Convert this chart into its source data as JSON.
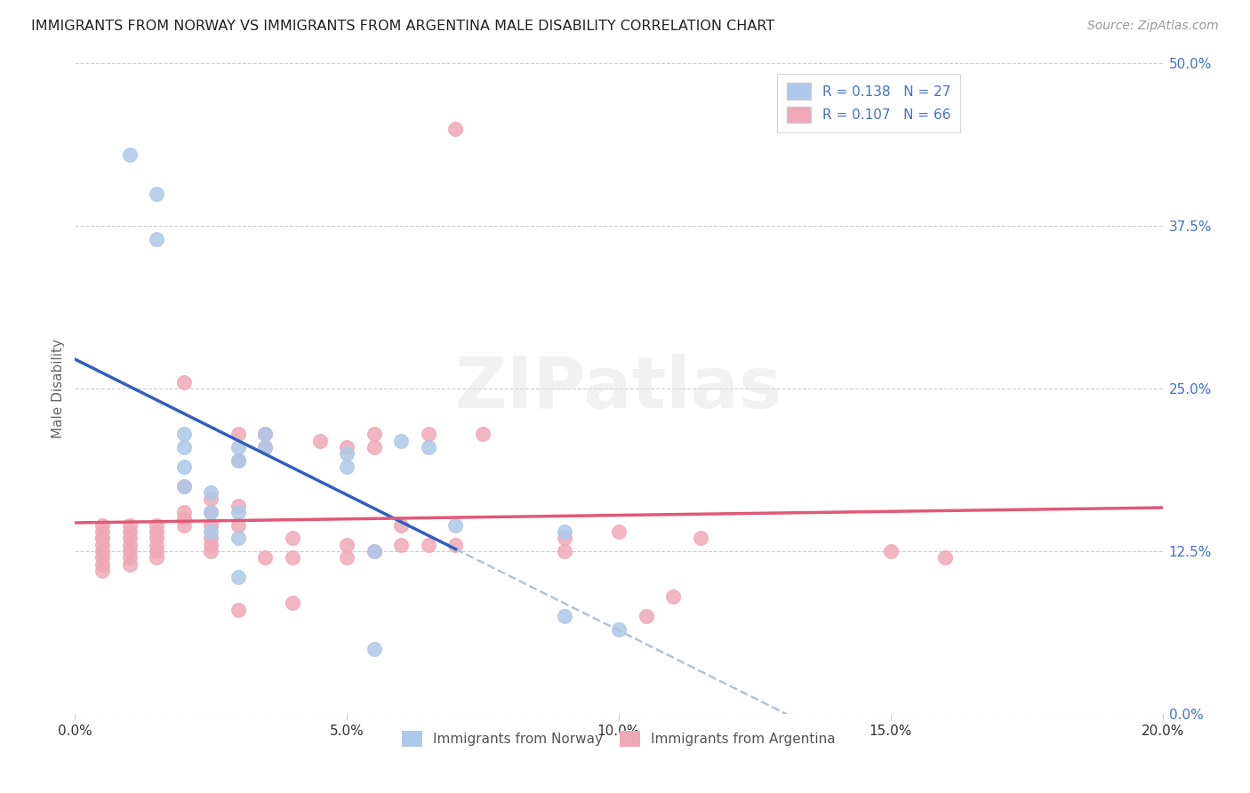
{
  "title": "IMMIGRANTS FROM NORWAY VS IMMIGRANTS FROM ARGENTINA MALE DISABILITY CORRELATION CHART",
  "source": "Source: ZipAtlas.com",
  "xlim": [
    0.0,
    0.2
  ],
  "ylim": [
    0.0,
    0.5
  ],
  "ylabel": "Male Disability",
  "legend_label1": "Immigrants from Norway",
  "legend_label2": "Immigrants from Argentina",
  "R1": 0.138,
  "N1": 27,
  "R2": 0.107,
  "N2": 66,
  "color_norway": "#adc8e8",
  "color_argentina": "#f0a8b8",
  "color_norway_line": "#3060c0",
  "color_argentina_line": "#e05878",
  "color_trendline_dash": "#b0c4d8",
  "norway_x": [
    0.01,
    0.015,
    0.015,
    0.02,
    0.02,
    0.02,
    0.02,
    0.025,
    0.025,
    0.025,
    0.03,
    0.03,
    0.03,
    0.03,
    0.03,
    0.035,
    0.035,
    0.05,
    0.05,
    0.055,
    0.055,
    0.06,
    0.065,
    0.07,
    0.09,
    0.09,
    0.1
  ],
  "norway_y": [
    0.43,
    0.4,
    0.365,
    0.215,
    0.205,
    0.19,
    0.175,
    0.17,
    0.155,
    0.14,
    0.205,
    0.195,
    0.155,
    0.135,
    0.105,
    0.215,
    0.205,
    0.19,
    0.2,
    0.125,
    0.05,
    0.21,
    0.205,
    0.145,
    0.075,
    0.14,
    0.065
  ],
  "argentina_x": [
    0.005,
    0.005,
    0.005,
    0.005,
    0.005,
    0.005,
    0.005,
    0.005,
    0.005,
    0.01,
    0.01,
    0.01,
    0.01,
    0.01,
    0.01,
    0.01,
    0.015,
    0.015,
    0.015,
    0.015,
    0.015,
    0.015,
    0.02,
    0.02,
    0.02,
    0.02,
    0.02,
    0.025,
    0.025,
    0.025,
    0.025,
    0.025,
    0.025,
    0.03,
    0.03,
    0.03,
    0.03,
    0.03,
    0.035,
    0.035,
    0.035,
    0.04,
    0.04,
    0.04,
    0.045,
    0.05,
    0.05,
    0.05,
    0.055,
    0.055,
    0.055,
    0.06,
    0.06,
    0.065,
    0.065,
    0.07,
    0.07,
    0.075,
    0.09,
    0.09,
    0.1,
    0.105,
    0.11,
    0.115,
    0.15,
    0.16
  ],
  "argentina_y": [
    0.145,
    0.14,
    0.135,
    0.135,
    0.13,
    0.125,
    0.12,
    0.115,
    0.11,
    0.145,
    0.14,
    0.135,
    0.13,
    0.125,
    0.12,
    0.115,
    0.145,
    0.14,
    0.135,
    0.13,
    0.125,
    0.12,
    0.255,
    0.175,
    0.155,
    0.15,
    0.145,
    0.165,
    0.155,
    0.145,
    0.135,
    0.13,
    0.125,
    0.215,
    0.195,
    0.16,
    0.145,
    0.08,
    0.215,
    0.205,
    0.12,
    0.135,
    0.12,
    0.085,
    0.21,
    0.205,
    0.13,
    0.12,
    0.215,
    0.205,
    0.125,
    0.145,
    0.13,
    0.215,
    0.13,
    0.45,
    0.13,
    0.215,
    0.135,
    0.125,
    0.14,
    0.075,
    0.09,
    0.135,
    0.125,
    0.12
  ],
  "watermark": "ZIPatlas",
  "background_color": "#ffffff",
  "grid_color": "#cccccc"
}
